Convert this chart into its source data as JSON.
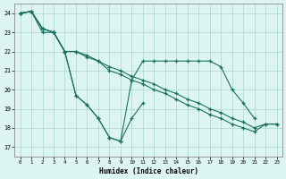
{
  "xlabel": "Humidex (Indice chaleur)",
  "xlim": [
    -0.5,
    23.5
  ],
  "ylim": [
    16.5,
    24.5
  ],
  "yticks": [
    17,
    18,
    19,
    20,
    21,
    22,
    23,
    24
  ],
  "xticks": [
    0,
    1,
    2,
    3,
    4,
    5,
    6,
    7,
    8,
    9,
    10,
    11,
    12,
    13,
    14,
    15,
    16,
    17,
    18,
    19,
    20,
    21,
    22,
    23
  ],
  "background_color": "#ddf5f0",
  "grid_color": "#aad8cc",
  "line_color": "#1a7060",
  "lines": [
    {
      "x": [
        0,
        1,
        2,
        3,
        4,
        5,
        6,
        7,
        8,
        9,
        10,
        11
      ],
      "y": [
        24.0,
        24.1,
        23.2,
        23.0,
        22.0,
        19.7,
        19.2,
        18.5,
        17.5,
        17.3,
        18.5,
        19.3
      ]
    },
    {
      "x": [
        0,
        1,
        2,
        3,
        4,
        5,
        6,
        7,
        8,
        9,
        10,
        11,
        12,
        13,
        14,
        15,
        16,
        17,
        18,
        19,
        20,
        21
      ],
      "y": [
        24.0,
        24.1,
        23.2,
        23.0,
        22.0,
        19.7,
        19.2,
        18.5,
        17.5,
        17.3,
        20.5,
        21.5,
        21.5,
        21.5,
        21.5,
        21.5,
        21.5,
        21.5,
        21.2,
        20.0,
        19.3,
        18.5
      ]
    },
    {
      "x": [
        0,
        1,
        2,
        3,
        4,
        5,
        6,
        7,
        8,
        9,
        10,
        11,
        12,
        13,
        14,
        15,
        16,
        17,
        18,
        19,
        20,
        21,
        22,
        23
      ],
      "y": [
        24.0,
        24.1,
        23.2,
        23.0,
        22.0,
        22.0,
        21.7,
        21.5,
        21.2,
        21.0,
        20.7,
        20.5,
        20.3,
        20.0,
        19.8,
        19.5,
        19.3,
        19.0,
        18.8,
        18.5,
        18.3,
        18.0,
        18.2,
        18.2
      ]
    },
    {
      "x": [
        0,
        1,
        2,
        3,
        4,
        5,
        6,
        7,
        8,
        9,
        10,
        11,
        12,
        13,
        14,
        15,
        16,
        17,
        18,
        19,
        20,
        21,
        22,
        23
      ],
      "y": [
        24.0,
        24.1,
        23.0,
        23.0,
        22.0,
        22.0,
        21.8,
        21.5,
        21.0,
        20.8,
        20.5,
        20.3,
        20.0,
        19.8,
        19.5,
        19.2,
        19.0,
        18.7,
        18.5,
        18.2,
        18.0,
        17.8,
        18.2,
        18.2
      ]
    }
  ]
}
